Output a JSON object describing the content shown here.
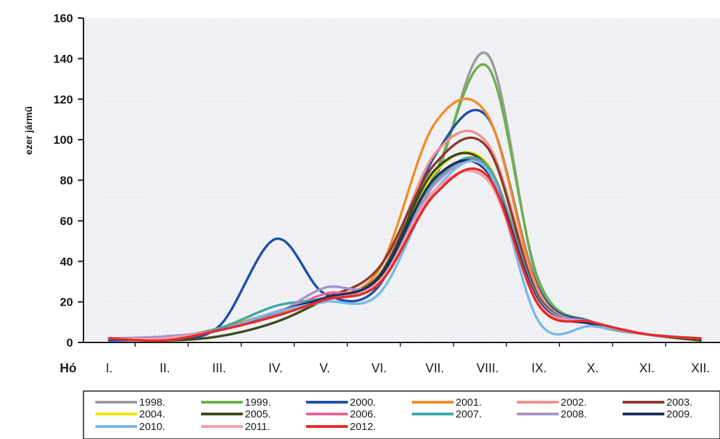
{
  "chart_data": {
    "type": "line",
    "ylabel": "ezer jármű",
    "xlabel": "Hó",
    "ylim": [
      0,
      160
    ],
    "yticks": [
      0,
      20,
      40,
      60,
      80,
      100,
      120,
      140,
      160
    ],
    "categories": [
      "I.",
      "II.",
      "III.",
      "IV.",
      "V.",
      "VI.",
      "VII.",
      "VIII.",
      "IX.",
      "X.",
      "XI.",
      "XII."
    ],
    "grid": false,
    "legend_position": "bottom",
    "series": [
      {
        "name": "1998.",
        "color": "#9a9a9a",
        "values": [
          2,
          2,
          6,
          14,
          22,
          30,
          80,
          142,
          28,
          10,
          4,
          2
        ]
      },
      {
        "name": "1999.",
        "color": "#6ab04c",
        "values": [
          2,
          2,
          6,
          14,
          21,
          31,
          83,
          136,
          30,
          10,
          4,
          1
        ]
      },
      {
        "name": "2000.",
        "color": "#1f4fa8",
        "values": [
          1,
          2,
          8,
          51,
          24,
          28,
          92,
          111,
          26,
          10,
          4,
          2
        ]
      },
      {
        "name": "2001.",
        "color": "#f28c28",
        "values": [
          2,
          2,
          7,
          15,
          22,
          36,
          108,
          112,
          25,
          9,
          4,
          2
        ]
      },
      {
        "name": "2002.",
        "color": "#f0908a",
        "values": [
          2,
          2,
          6,
          14,
          21,
          33,
          93,
          98,
          24,
          9,
          4,
          2
        ]
      },
      {
        "name": "2003.",
        "color": "#8b3a2b",
        "values": [
          2,
          2,
          6,
          14,
          22,
          37,
          88,
          96,
          22,
          9,
          4,
          2
        ]
      },
      {
        "name": "2004.",
        "color": "#f5e500",
        "values": [
          2,
          2,
          6,
          14,
          21,
          31,
          84,
          88,
          21,
          9,
          4,
          2
        ]
      },
      {
        "name": "2005.",
        "color": "#3d4a1e",
        "values": [
          2,
          1,
          3,
          10,
          21,
          33,
          85,
          87,
          22,
          9,
          4,
          1
        ]
      },
      {
        "name": "2006.",
        "color": "#e8649a",
        "values": [
          2,
          2,
          6,
          14,
          24,
          29,
          79,
          86,
          20,
          9,
          4,
          2
        ]
      },
      {
        "name": "2007.",
        "color": "#3fa8a6",
        "values": [
          2,
          2,
          7,
          18,
          22,
          32,
          79,
          87,
          21,
          9,
          4,
          2
        ]
      },
      {
        "name": "2008.",
        "color": "#a892c8",
        "values": [
          2,
          3,
          6,
          14,
          27,
          30,
          78,
          85,
          21,
          10,
          4,
          2
        ]
      },
      {
        "name": "2009.",
        "color": "#1a2f5e",
        "values": [
          2,
          2,
          6,
          15,
          22,
          32,
          81,
          84,
          20,
          9,
          4,
          2
        ]
      },
      {
        "name": "2010.",
        "color": "#79b8e8",
        "values": [
          2,
          2,
          6,
          15,
          20,
          24,
          75,
          85,
          10,
          8,
          4,
          2
        ]
      },
      {
        "name": "2011.",
        "color": "#f2a0a8",
        "values": [
          2,
          2,
          6,
          13,
          21,
          30,
          75,
          80,
          19,
          10,
          4,
          2
        ]
      },
      {
        "name": "2012.",
        "color": "#e52a2a",
        "values": [
          2,
          1,
          6,
          13,
          21,
          29,
          73,
          82,
          18,
          10,
          4,
          2
        ]
      }
    ]
  }
}
